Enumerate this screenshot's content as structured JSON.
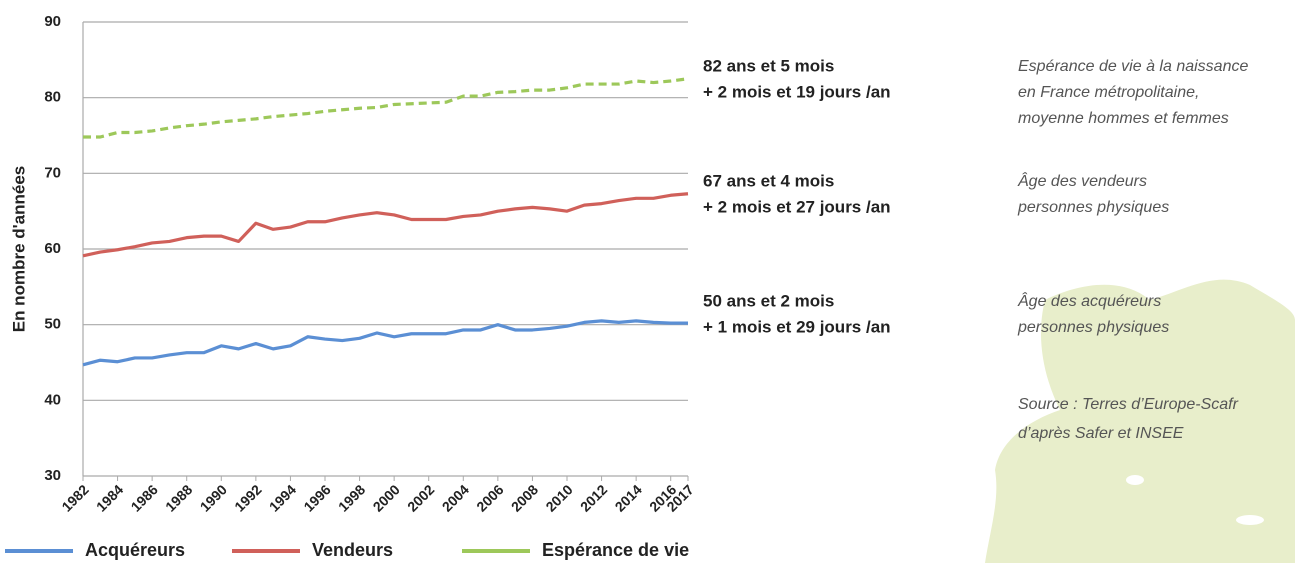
{
  "chart_data": {
    "type": "line",
    "y_label": "En nombre d'années",
    "x": [
      1982,
      1983,
      1984,
      1985,
      1986,
      1987,
      1988,
      1989,
      1990,
      1991,
      1992,
      1993,
      1994,
      1995,
      1996,
      1997,
      1998,
      1999,
      2000,
      2001,
      2002,
      2003,
      2004,
      2005,
      2006,
      2007,
      2008,
      2009,
      2010,
      2011,
      2012,
      2013,
      2014,
      2015,
      2016,
      2017
    ],
    "xlim": [
      1982,
      2017
    ],
    "xticks": [
      1982,
      1984,
      1986,
      1988,
      1990,
      1992,
      1994,
      1996,
      1998,
      2000,
      2002,
      2004,
      2006,
      2008,
      2010,
      2012,
      2014,
      2016,
      2017
    ],
    "ylim": [
      30,
      90
    ],
    "yticks": [
      30,
      40,
      50,
      60,
      70,
      80,
      90
    ],
    "grid": true,
    "legend": "bottom",
    "series": [
      {
        "name": "Acquéreurs",
        "color": "#5b8fd4",
        "style": "solid",
        "values": [
          44.7,
          45.3,
          45.1,
          45.6,
          45.6,
          46.0,
          46.3,
          46.3,
          47.2,
          46.8,
          47.5,
          46.8,
          47.2,
          48.4,
          48.1,
          47.9,
          48.2,
          48.9,
          48.4,
          48.8,
          48.8,
          48.8,
          49.3,
          49.3,
          50.0,
          49.3,
          49.3,
          49.5,
          49.8,
          50.3,
          50.5,
          50.3,
          50.5,
          50.3,
          50.2,
          50.2
        ]
      },
      {
        "name": "Vendeurs",
        "color": "#d0605a",
        "style": "solid",
        "values": [
          59.1,
          59.6,
          59.9,
          60.3,
          60.8,
          61.0,
          61.5,
          61.7,
          61.7,
          61.0,
          63.4,
          62.6,
          62.9,
          63.6,
          63.6,
          64.1,
          64.5,
          64.8,
          64.5,
          63.9,
          63.9,
          63.9,
          64.3,
          64.5,
          65.0,
          65.3,
          65.5,
          65.3,
          65.0,
          65.8,
          66.0,
          66.4,
          66.7,
          66.7,
          67.1,
          67.3
        ]
      },
      {
        "name": "Espérance de vie",
        "color": "#9dc85a",
        "style": "dashed",
        "values": [
          74.8,
          74.8,
          75.4,
          75.4,
          75.6,
          76.0,
          76.3,
          76.5,
          76.8,
          77.0,
          77.2,
          77.5,
          77.7,
          77.9,
          78.2,
          78.4,
          78.6,
          78.7,
          79.1,
          79.2,
          79.3,
          79.4,
          80.2,
          80.2,
          80.7,
          80.8,
          81.0,
          81.0,
          81.3,
          81.8,
          81.8,
          81.8,
          82.2,
          82.0,
          82.2,
          82.5
        ]
      }
    ],
    "annotations": [
      {
        "lines": [
          "82 ans et 5 mois",
          "+ 2 mois et 19 jours /an"
        ],
        "note": [
          "Espérance de vie à la naissance",
          "en France métropolitaine,",
          "moyenne hommes et femmes"
        ]
      },
      {
        "lines": [
          "67 ans et 4 mois",
          "+ 2 mois et 27 jours /an"
        ],
        "note": [
          "Âge des vendeurs",
          "personnes physiques"
        ]
      },
      {
        "lines": [
          "50 ans et 2 mois",
          "+ 1 mois et 29 jours /an"
        ],
        "note": [
          "Âge des acquéreurs",
          "personnes physiques"
        ]
      }
    ],
    "source": [
      "Source : Terres d’Europe-Scafr",
      "d’après Safer et INSEE"
    ]
  }
}
